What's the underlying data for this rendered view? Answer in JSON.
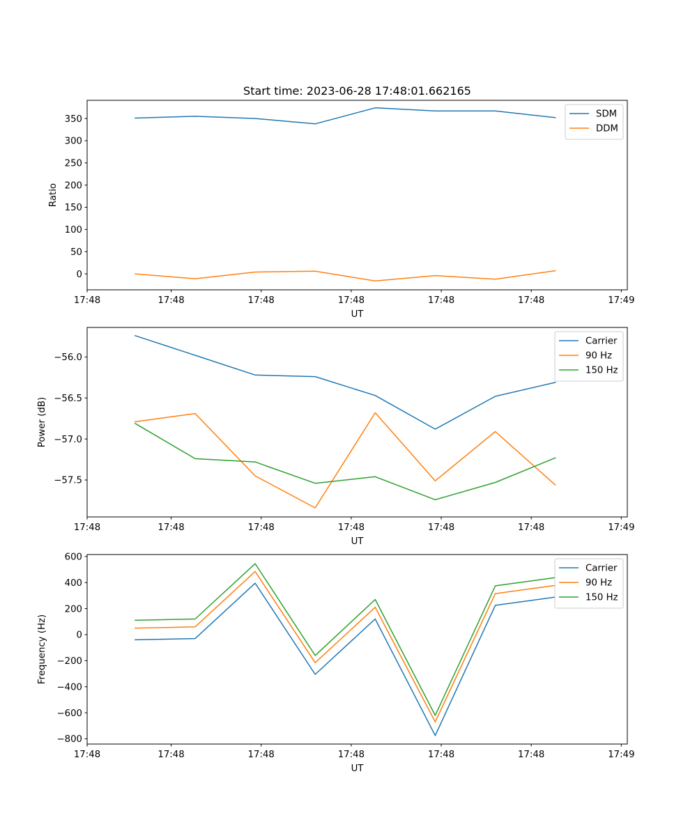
{
  "figure": {
    "title": "Start time: 2023-06-28 17:48:01.662165"
  },
  "chart_data": [
    {
      "type": "line",
      "title": "Start time: 2023-06-28 17:48:01.662165",
      "xlabel": "UT",
      "ylabel": "Ratio",
      "x": [
        1,
        2,
        3,
        4,
        5,
        6,
        7,
        8
      ],
      "xlim": [
        0.2,
        9.2
      ],
      "x_ticks": [
        0.2,
        1.6,
        3.1,
        4.6,
        6.1,
        7.6,
        9.1
      ],
      "x_tick_labels": [
        "17:48",
        "17:48",
        "17:48",
        "17:48",
        "17:48",
        "17:48",
        "17:49"
      ],
      "ylim": [
        -36,
        391
      ],
      "y_ticks": [
        0,
        50,
        100,
        150,
        200,
        250,
        300,
        350
      ],
      "y_tick_labels": [
        "0",
        "50",
        "100",
        "150",
        "200",
        "250",
        "300",
        "350"
      ],
      "grid": false,
      "legend": "top-right",
      "series": [
        {
          "name": "SDM",
          "color": "#1f77b4",
          "values": [
            351,
            355,
            350,
            338,
            374,
            367,
            367,
            352
          ]
        },
        {
          "name": "DDM",
          "color": "#ff7f0e",
          "values": [
            0,
            -11,
            4,
            6,
            -16,
            -4,
            -12,
            7
          ]
        }
      ]
    },
    {
      "type": "line",
      "xlabel": "UT",
      "ylabel": "Power (dB)",
      "x": [
        1,
        2,
        3,
        4,
        5,
        6,
        7,
        8
      ],
      "xlim": [
        0.2,
        9.2
      ],
      "x_ticks": [
        0.2,
        1.6,
        3.1,
        4.6,
        6.1,
        7.6,
        9.1
      ],
      "x_tick_labels": [
        "17:48",
        "17:48",
        "17:48",
        "17:48",
        "17:48",
        "17:48",
        "17:49"
      ],
      "ylim": [
        -57.95,
        -55.64
      ],
      "y_ticks": [
        -57.5,
        -57.0,
        -56.5,
        -56.0
      ],
      "y_tick_labels": [
        "−57.5",
        "−57.0",
        "−56.5",
        "−56.0"
      ],
      "grid": false,
      "legend": "top-right",
      "series": [
        {
          "name": "Carrier",
          "color": "#1f77b4",
          "values": [
            -55.74,
            -55.98,
            -56.22,
            -56.24,
            -56.47,
            -56.88,
            -56.48,
            -56.31
          ]
        },
        {
          "name": "90 Hz",
          "color": "#ff7f0e",
          "values": [
            -56.79,
            -56.69,
            -57.45,
            -57.84,
            -56.68,
            -57.51,
            -56.91,
            -57.56
          ]
        },
        {
          "name": "150 Hz",
          "color": "#2ca02c",
          "values": [
            -56.81,
            -57.24,
            -57.28,
            -57.54,
            -57.46,
            -57.74,
            -57.53,
            -57.23
          ]
        }
      ]
    },
    {
      "type": "line",
      "xlabel": "UT",
      "ylabel": "Frequency (Hz)",
      "x": [
        1,
        2,
        3,
        4,
        5,
        6,
        7,
        8
      ],
      "xlim": [
        0.2,
        9.2
      ],
      "x_ticks": [
        0.2,
        1.6,
        3.1,
        4.6,
        6.1,
        7.6,
        9.1
      ],
      "x_tick_labels": [
        "17:48",
        "17:48",
        "17:48",
        "17:48",
        "17:48",
        "17:48",
        "17:49"
      ],
      "ylim": [
        -840,
        615
      ],
      "y_ticks": [
        -800,
        -600,
        -400,
        -200,
        0,
        200,
        400,
        600
      ],
      "y_tick_labels": [
        "−800",
        "−600",
        "−400",
        "−200",
        "0",
        "200",
        "400",
        "600"
      ],
      "grid": false,
      "legend": "top-right",
      "series": [
        {
          "name": "Carrier",
          "color": "#1f77b4",
          "values": [
            -40,
            -30,
            395,
            -305,
            120,
            -775,
            225,
            288
          ]
        },
        {
          "name": "90 Hz",
          "color": "#ff7f0e",
          "values": [
            50,
            60,
            485,
            -215,
            210,
            -670,
            315,
            378
          ]
        },
        {
          "name": "150 Hz",
          "color": "#2ca02c",
          "values": [
            110,
            120,
            545,
            -160,
            270,
            -620,
            375,
            438
          ]
        }
      ]
    }
  ]
}
